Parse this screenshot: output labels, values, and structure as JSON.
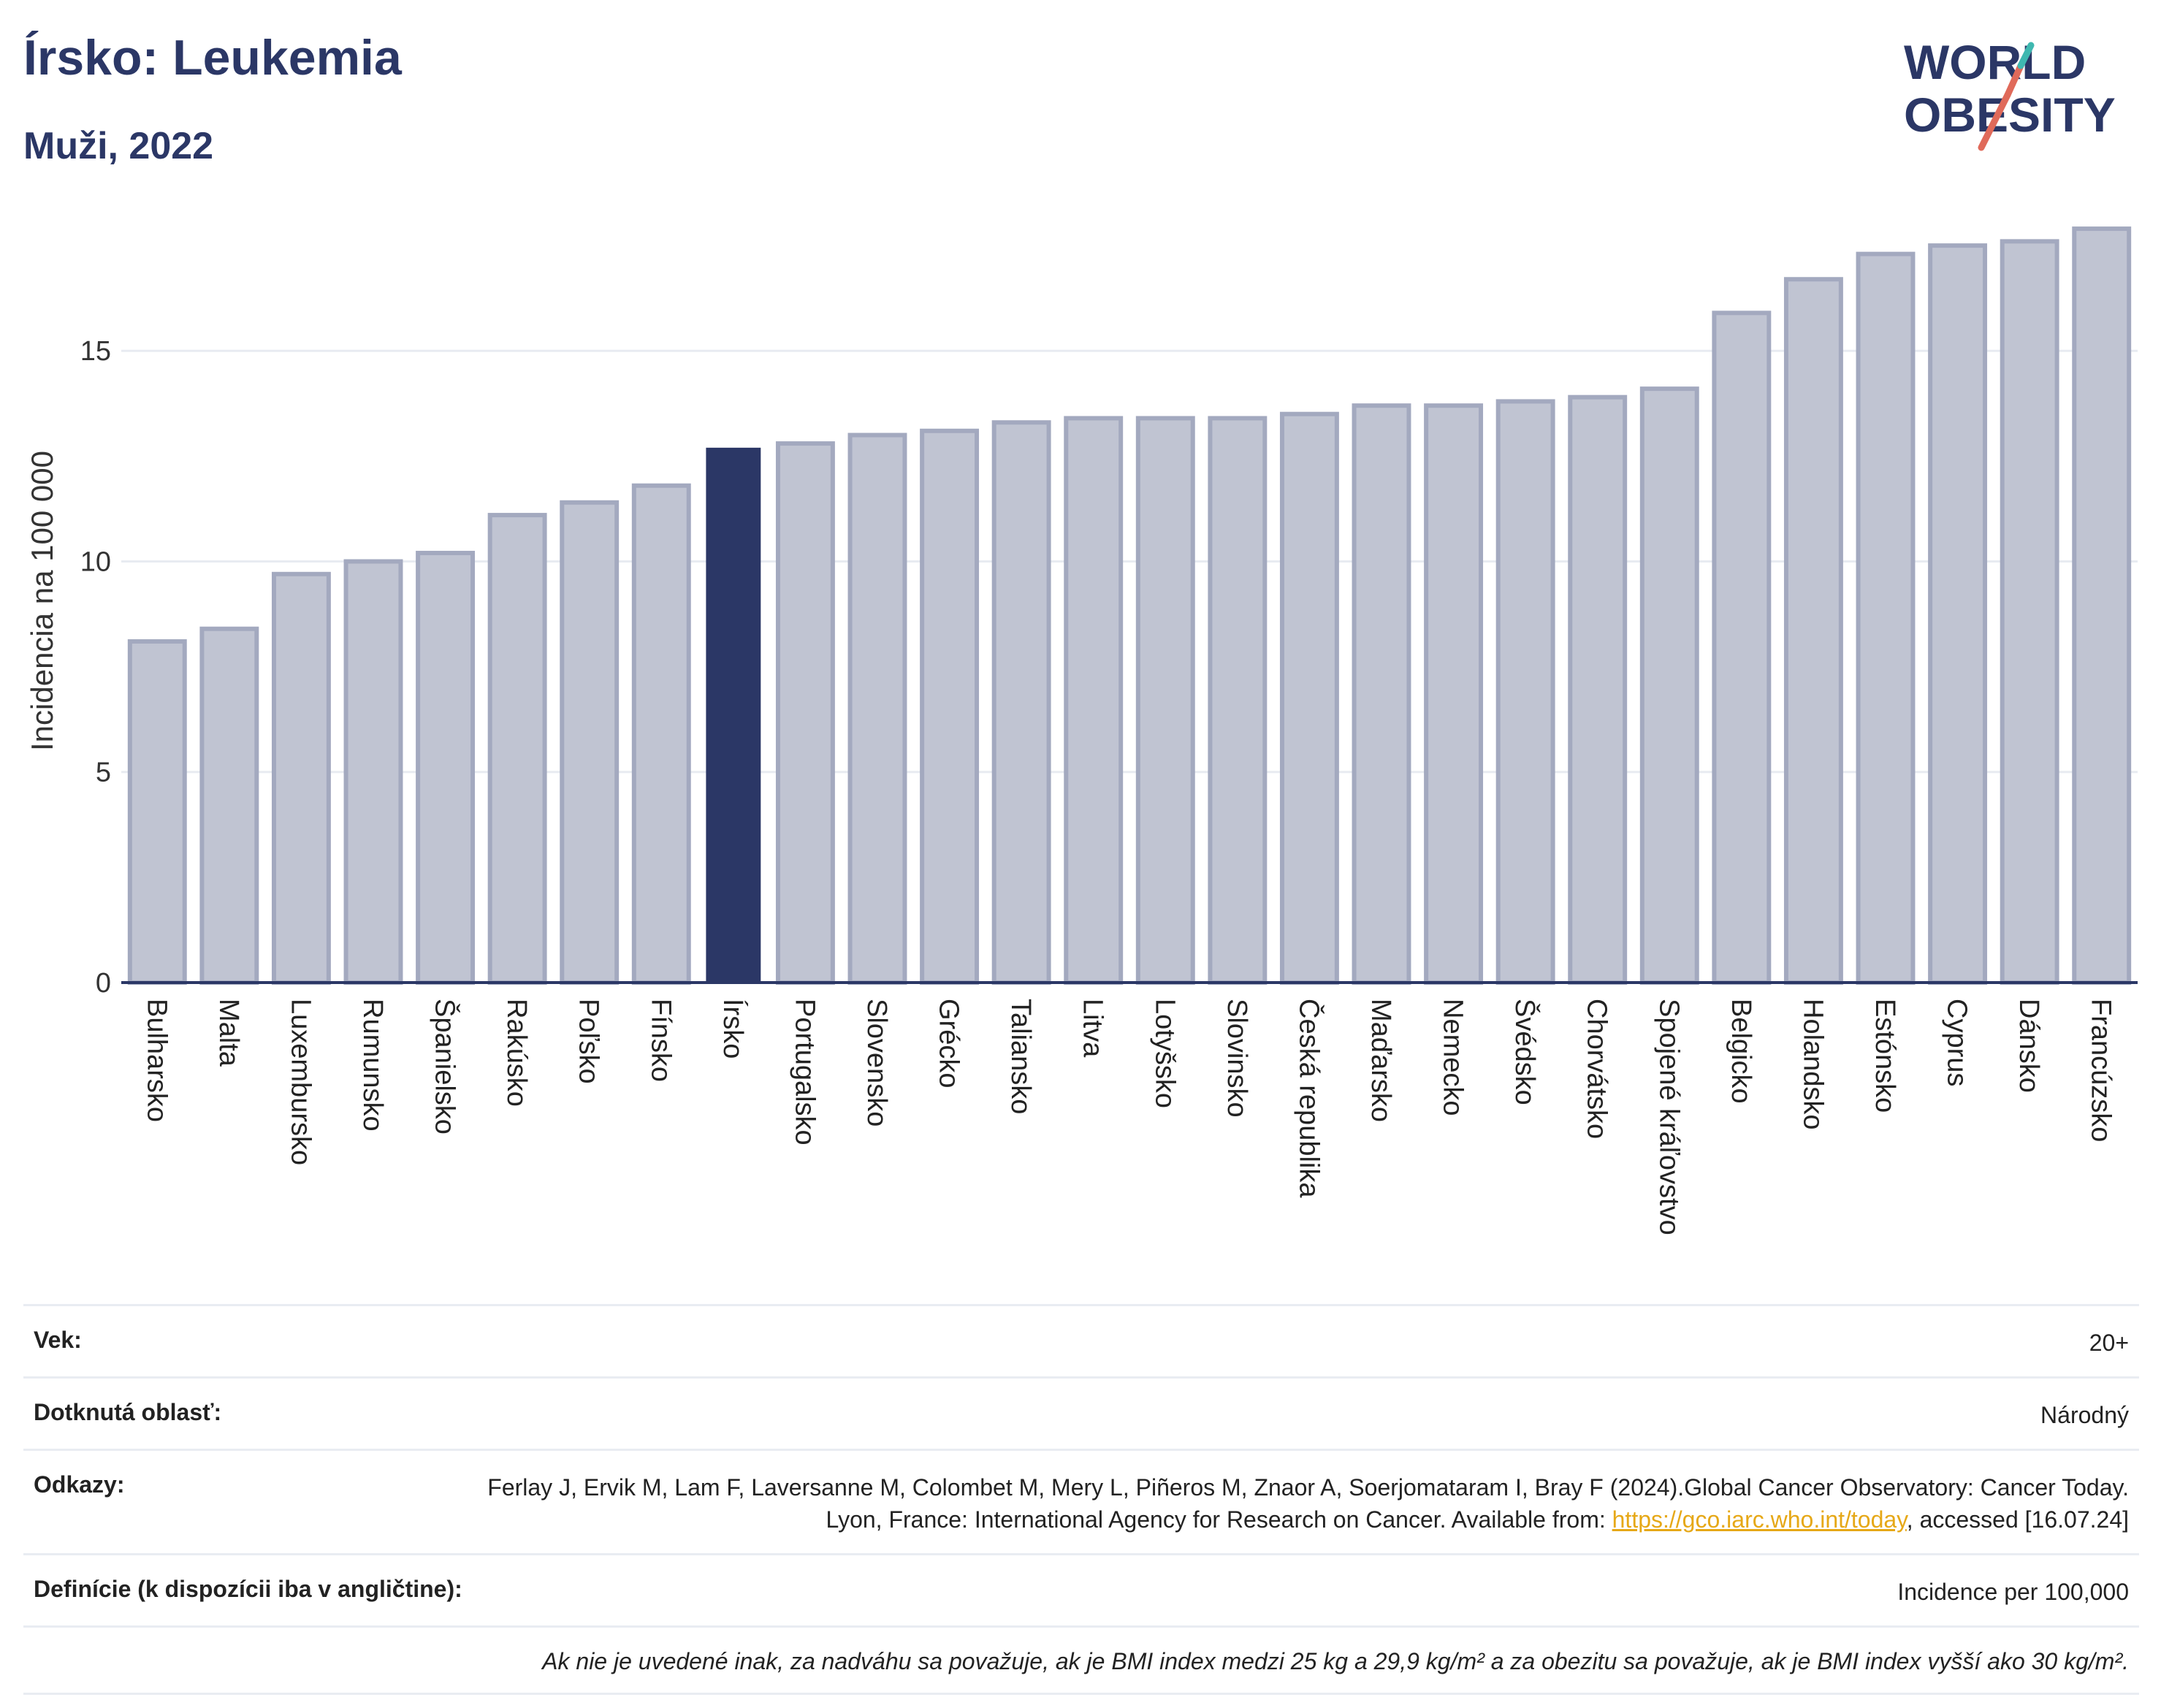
{
  "header": {
    "title": "Írsko: Leukemia",
    "subtitle": "Muži, 2022",
    "logo_line1": "WORLD",
    "logo_line2": "OBESITY"
  },
  "colors": {
    "bar": "#c0c4d2",
    "bar_border": "#a3a9bf",
    "highlight": "#2b3766",
    "axis": "#2b3766",
    "grid": "#e8ebf1",
    "logo_accent": "#e06a5a",
    "logo_accent2": "#3fb8b0"
  },
  "chart_data": {
    "type": "bar",
    "title": "Írsko: Leukemia",
    "subtitle": "Muži, 2022",
    "ylabel": "Incidencia na 100 000",
    "xlabel": "",
    "ylim": [
      0,
      18.3
    ],
    "yticks": [
      0,
      5,
      10,
      15
    ],
    "grid": true,
    "highlight": "Írsko",
    "categories": [
      "Bulharsko",
      "Malta",
      "Luxembursko",
      "Rumunsko",
      "Španielsko",
      "Rakúsko",
      "Poľsko",
      "Fínsko",
      "Írsko",
      "Portugalsko",
      "Slovensko",
      "Grécko",
      "Taliansko",
      "Litva",
      "Lotyšsko",
      "Slovinsko",
      "Česká republika",
      "Maďarsko",
      "Nemecko",
      "Švédsko",
      "Chorvátsko",
      "Spojené kráľovstvo",
      "Belgicko",
      "Holandsko",
      "Estónsko",
      "Cyprus",
      "Dánsko",
      "Francúzsko"
    ],
    "values": [
      8.1,
      8.4,
      9.7,
      10.0,
      10.2,
      11.1,
      11.4,
      11.8,
      12.7,
      12.8,
      13.0,
      13.1,
      13.3,
      13.4,
      13.4,
      13.4,
      13.5,
      13.7,
      13.7,
      13.8,
      13.9,
      14.1,
      15.9,
      16.7,
      17.3,
      17.5,
      17.6,
      17.9
    ]
  },
  "info": {
    "age_label": "Vek:",
    "age_value": "20+",
    "area_label": "Dotknutá oblasť:",
    "area_value": "Národný",
    "refs_label": "Odkazy:",
    "refs_text_1": "Ferlay J, Ervik M, Lam F, Laversanne M, Colombet M, Mery L, Piñeros M, Znaor A, Soerjomataram I, Bray F (2024).Global Cancer Observatory: Cancer Today. Lyon, France: International Agency for Research on Cancer. Available from: ",
    "refs_link": "https://gco.iarc.who.int/today",
    "refs_text_2": ", accessed [16.07.24]",
    "def_label": "Definície (k dispozícii iba v angličtine):",
    "def_value": "Incidence per 100,000",
    "note": "Ak nie je uvedené inak, za nadváhu sa považuje, ak je BMI index medzi 25 kg a 29,9 kg/m² a za obezitu sa považuje, ak je BMI index vyšší ako 30 kg/m²."
  }
}
